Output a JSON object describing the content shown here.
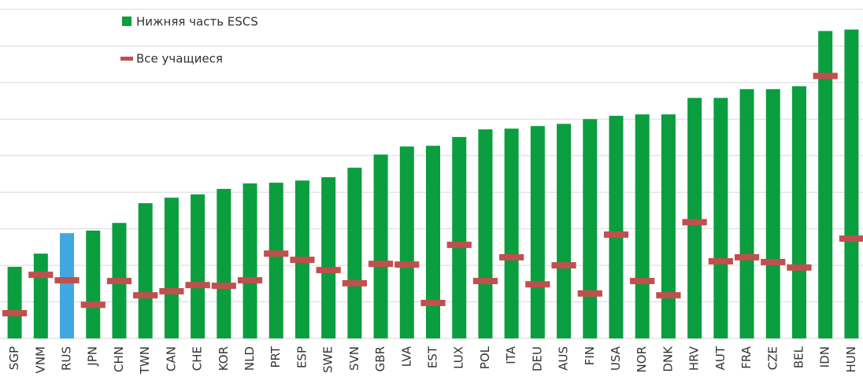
{
  "chart_data": {
    "type": "bar",
    "categories": [
      "SGP",
      "VNM",
      "RUS",
      "JPN",
      "CHN",
      "TWN",
      "CAN",
      "CHE",
      "KOR",
      "NLD",
      "PRT",
      "ESP",
      "SWE",
      "SVN",
      "GBR",
      "LVA",
      "EST",
      "LUX",
      "POL",
      "ITA",
      "DEU",
      "AUS",
      "FIN",
      "USA",
      "NOR",
      "DNK",
      "HRV",
      "AUT",
      "FRA",
      "CZE",
      "BEL",
      "IDN",
      "HUN"
    ],
    "series": [
      {
        "name": "Нижняя часть ESCS",
        "type": "bar",
        "color": "#0a9e3f",
        "colors": [
          "#0a9e3f",
          "#0a9e3f",
          "#41a7e0",
          "#0a9e3f",
          "#0a9e3f",
          "#0a9e3f",
          "#0a9e3f",
          "#0a9e3f",
          "#0a9e3f",
          "#0a9e3f",
          "#0a9e3f",
          "#0a9e3f",
          "#0a9e3f",
          "#0a9e3f",
          "#0a9e3f",
          "#0a9e3f",
          "#0a9e3f",
          "#0a9e3f",
          "#0a9e3f",
          "#0a9e3f",
          "#0a9e3f",
          "#0a9e3f",
          "#0a9e3f",
          "#0a9e3f",
          "#0a9e3f",
          "#0a9e3f",
          "#0a9e3f",
          "#0a9e3f",
          "#0a9e3f",
          "#0a9e3f",
          "#0a9e3f",
          "#0a9e3f",
          "#0a9e3f"
        ],
        "values": [
          1.96,
          2.32,
          2.88,
          2.95,
          3.16,
          3.7,
          3.85,
          3.94,
          4.09,
          4.24,
          4.26,
          4.32,
          4.41,
          4.67,
          5.03,
          5.25,
          5.27,
          5.51,
          5.72,
          5.74,
          5.81,
          5.87,
          6.0,
          6.09,
          6.13,
          6.13,
          6.58,
          6.58,
          6.82,
          6.82,
          6.9,
          8.41,
          8.45
        ]
      },
      {
        "name": "Все учащиеся",
        "type": "marker",
        "color": "#c0504d",
        "values": [
          0.69,
          1.74,
          1.59,
          0.92,
          1.57,
          1.18,
          1.29,
          1.46,
          1.44,
          1.59,
          2.32,
          2.15,
          1.87,
          1.51,
          2.04,
          2.02,
          0.97,
          2.56,
          1.57,
          2.22,
          1.48,
          2.0,
          1.23,
          2.84,
          1.57,
          1.18,
          3.18,
          2.11,
          2.22,
          2.09,
          1.94,
          7.18,
          2.73
        ]
      }
    ],
    "ylim": [
      0,
      9
    ],
    "yticks": [
      0,
      1,
      2,
      3,
      4,
      5,
      6,
      7,
      8,
      9
    ],
    "grid": true
  }
}
